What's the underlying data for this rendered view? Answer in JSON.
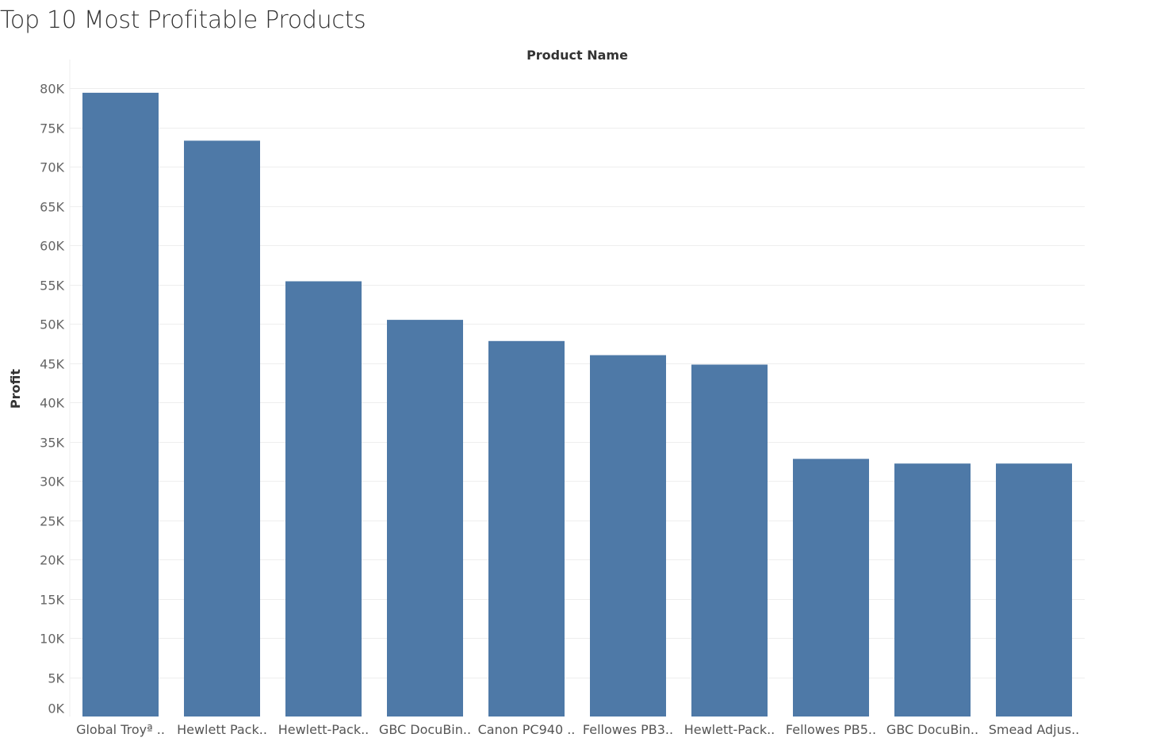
{
  "chart_data": {
    "type": "bar",
    "title": "Top 10 Most Profitable Products",
    "xlabel": "Product Name",
    "ylabel": "Profit",
    "categories": [
      "Global Troyª ..",
      "Hewlett Pack..",
      "Hewlett-Pack..",
      "GBC DocuBin..",
      "Canon PC940 ..",
      "Fellowes PB3..",
      "Hewlett-Pack..",
      "Fellowes PB5..",
      "GBC DocuBin..",
      "Smead Adjus.."
    ],
    "values": [
      79400,
      73300,
      55400,
      50500,
      47800,
      46000,
      44800,
      32800,
      32200,
      32200
    ],
    "ylim": [
      0,
      80000
    ],
    "yticks": [
      0,
      5000,
      10000,
      15000,
      20000,
      25000,
      30000,
      35000,
      40000,
      45000,
      50000,
      55000,
      60000,
      65000,
      70000,
      75000,
      80000
    ],
    "ytick_labels": [
      "0K",
      "5K",
      "10K",
      "15K",
      "20K",
      "25K",
      "30K",
      "35K",
      "40K",
      "45K",
      "50K",
      "55K",
      "60K",
      "65K",
      "70K",
      "75K",
      "80K"
    ],
    "bar_color": "#4e79a7",
    "grid": true,
    "legend": "none"
  }
}
